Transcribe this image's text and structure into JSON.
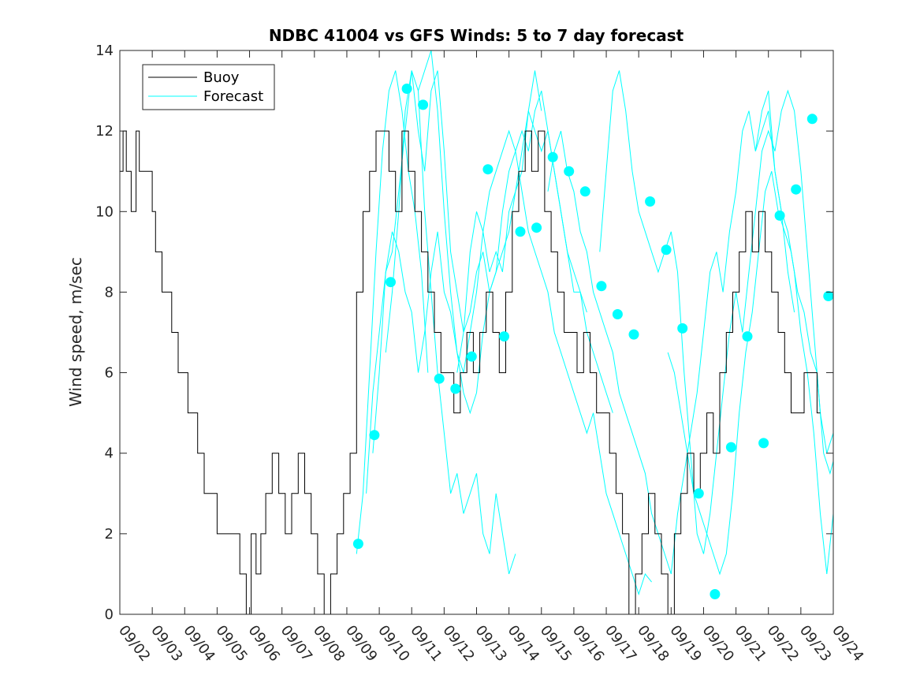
{
  "chart_data": {
    "type": "line",
    "title": "NDBC 41004 vs GFS Winds: 5 to 7 day forecast",
    "xlabel": "",
    "ylabel": "Wind speed, m/sec",
    "xlim": [
      0,
      22
    ],
    "ylim": [
      0,
      14
    ],
    "yticks": [
      0,
      2,
      4,
      6,
      8,
      10,
      12,
      14
    ],
    "x_tick_labels": [
      "09/02",
      "09/03",
      "09/04",
      "09/05",
      "09/06",
      "09/07",
      "09/08",
      "09/09",
      "09/10",
      "09/11",
      "09/12",
      "09/13",
      "09/14",
      "09/15",
      "09/16",
      "09/17",
      "09/18",
      "09/19",
      "09/20",
      "09/21",
      "09/22",
      "09/23",
      "09/24"
    ],
    "grid": false,
    "legend": {
      "position": "top-left",
      "entries": [
        "Buoy",
        "Forecast"
      ]
    },
    "colors": {
      "buoy": "#000000",
      "forecast": "#00ffff"
    },
    "series": [
      {
        "name": "Buoy",
        "x": [
          0.0,
          0.1,
          0.2,
          0.35,
          0.5,
          0.6,
          0.8,
          1.0,
          1.1,
          1.3,
          1.6,
          1.8,
          2.1,
          2.4,
          2.6,
          2.8,
          3.0,
          3.2,
          3.5,
          3.7,
          3.9,
          4.05,
          4.2,
          4.35,
          4.5,
          4.7,
          4.9,
          5.1,
          5.3,
          5.5,
          5.7,
          5.9,
          6.1,
          6.3,
          6.5,
          6.7,
          6.9,
          7.1,
          7.3,
          7.5,
          7.7,
          7.9,
          8.1,
          8.3,
          8.5,
          8.7,
          8.9,
          9.1,
          9.3,
          9.5,
          9.7,
          9.9,
          10.1,
          10.3,
          10.5,
          10.7,
          10.9,
          11.1,
          11.3,
          11.5,
          11.7,
          11.9,
          12.1,
          12.3,
          12.5,
          12.7,
          12.9,
          13.1,
          13.3,
          13.5,
          13.7,
          13.9,
          14.1,
          14.3,
          14.5,
          14.7,
          14.9,
          15.1,
          15.3,
          15.5,
          15.7,
          15.9,
          16.1,
          16.3,
          16.5,
          16.7,
          16.9,
          17.1,
          17.3,
          17.5,
          17.7,
          17.9,
          18.1,
          18.3,
          18.5,
          18.7,
          18.9,
          19.1,
          19.3,
          19.5,
          19.7,
          19.9,
          20.1,
          20.3,
          20.5,
          20.7,
          20.9,
          21.1,
          21.3,
          21.5
        ],
        "y": [
          11,
          12,
          11,
          10,
          12,
          11,
          11,
          10,
          9,
          8,
          7,
          6,
          5,
          4,
          3,
          3,
          2,
          2,
          2,
          1,
          0,
          2,
          1,
          2,
          3,
          4,
          3,
          2,
          3,
          4,
          3,
          2,
          1,
          0,
          1,
          2,
          3,
          4,
          8,
          10,
          11,
          12,
          12,
          11,
          10,
          12,
          11,
          10,
          9,
          8,
          7,
          6,
          6,
          5,
          6,
          7,
          6,
          7,
          8,
          7,
          6,
          8,
          10,
          11,
          12,
          11,
          12,
          10,
          9,
          8,
          7,
          7,
          6,
          7,
          6,
          5,
          5,
          4,
          3,
          2,
          0,
          1,
          2,
          3,
          2,
          1,
          0,
          2,
          3,
          4,
          3,
          4,
          5,
          4,
          6,
          7,
          8,
          9,
          10,
          9,
          10,
          9,
          8,
          7,
          6,
          5,
          5,
          6,
          6,
          5
        ]
      },
      {
        "name": "Forecast",
        "markers": {
          "x": [
            7.35,
            7.85,
            8.35,
            8.85,
            9.35,
            9.85,
            10.35,
            10.85,
            11.35,
            11.85,
            12.35,
            12.85,
            13.35,
            13.85,
            14.35,
            14.85,
            15.35,
            15.85,
            16.35,
            16.85,
            17.35,
            17.85,
            18.35,
            18.85,
            19.35,
            19.85,
            20.35,
            20.85,
            21.35,
            21.85
          ],
          "y": [
            1.75,
            4.45,
            8.25,
            13.05,
            12.65,
            5.85,
            5.6,
            6.4,
            11.05,
            6.9,
            9.5,
            9.6,
            11.35,
            11.0,
            10.5,
            8.15,
            7.45,
            6.95,
            10.25,
            9.05,
            7.1,
            3.0,
            0.5,
            4.15,
            6.9,
            4.25,
            9.9,
            10.55,
            12.3,
            7.9
          ]
        },
        "traces": [
          {
            "x": [
              7.3,
              7.5,
              7.7,
              7.9,
              8.1,
              8.3,
              8.5,
              8.7,
              8.9,
              9.1,
              9.3,
              9.5
            ],
            "y": [
              1.5,
              3.0,
              6.0,
              9.0,
              11.5,
              13.0,
              13.5,
              12.5,
              11.0,
              10.0,
              8.5,
              6.0
            ]
          },
          {
            "x": [
              7.6,
              7.8,
              8.0,
              8.2,
              8.4,
              8.6,
              8.8,
              9.0,
              9.2,
              9.4,
              9.6,
              9.8,
              10.0,
              10.2,
              10.4,
              10.6,
              10.8,
              11.0,
              11.2,
              11.4,
              11.6,
              11.8,
              12.0,
              12.2
            ],
            "y": [
              3.0,
              5.5,
              7.0,
              8.5,
              9.0,
              10.5,
              12.0,
              13.5,
              13.0,
              10.0,
              8.0,
              6.0,
              4.5,
              3.0,
              3.5,
              2.5,
              3.0,
              3.5,
              2.0,
              1.5,
              3.0,
              2.0,
              1.0,
              1.5
            ]
          },
          {
            "x": [
              7.8,
              8.0,
              8.2,
              8.4,
              8.6,
              8.8,
              9.0,
              9.2,
              9.4,
              9.6,
              9.8,
              10.0,
              10.2,
              10.4,
              10.6,
              10.8,
              11.0,
              11.2,
              11.4,
              11.6,
              11.8,
              12.0,
              12.2,
              12.4,
              12.6,
              12.8,
              13.0
            ],
            "y": [
              4.0,
              6.0,
              8.5,
              9.5,
              9.0,
              8.0,
              7.5,
              6.0,
              7.0,
              8.5,
              9.5,
              8.0,
              7.5,
              6.5,
              6.0,
              7.0,
              8.0,
              9.5,
              8.5,
              9.0,
              8.5,
              10.0,
              10.5,
              11.0,
              12.5,
              13.5,
              12.5
            ]
          },
          {
            "x": [
              8.2,
              8.4,
              8.6,
              8.8,
              9.0,
              9.2,
              9.4,
              9.6,
              9.8,
              10.0,
              10.2,
              10.4,
              10.6,
              10.8,
              11.0,
              11.2,
              11.4,
              11.6,
              11.8,
              12.0,
              12.2,
              12.4,
              12.6,
              12.8,
              13.0,
              13.2,
              13.4,
              13.6,
              13.8,
              14.0,
              14.2,
              14.4
            ],
            "y": [
              6.5,
              8.0,
              10.0,
              12.5,
              13.5,
              12.0,
              11.0,
              13.0,
              13.5,
              11.5,
              9.0,
              8.0,
              7.0,
              7.5,
              8.5,
              9.0,
              8.0,
              8.5,
              10.0,
              11.0,
              11.5,
              12.0,
              11.5,
              12.5,
              13.0,
              12.0,
              11.0,
              10.0,
              9.0,
              8.5,
              8.0,
              7.5
            ]
          },
          {
            "x": [
              9.2,
              9.4,
              9.6,
              9.8,
              10.0,
              10.2,
              10.4,
              10.6,
              10.8,
              11.0,
              11.2,
              11.4,
              11.6,
              11.8,
              12.0,
              12.2,
              12.4,
              12.6,
              12.8,
              13.0,
              13.2,
              13.4,
              13.6,
              13.8,
              14.0,
              14.2,
              14.4,
              14.6,
              14.8,
              15.0,
              15.2
            ],
            "y": [
              13.0,
              13.5,
              14.0,
              12.5,
              10.0,
              8.0,
              6.5,
              5.5,
              5.0,
              5.5,
              7.0,
              8.0,
              8.5,
              9.0,
              9.5,
              10.5,
              11.5,
              12.5,
              12.0,
              11.5,
              12.0,
              11.0,
              10.0,
              9.0,
              8.0,
              8.0,
              7.0,
              6.5,
              6.0,
              5.5,
              5.0
            ]
          },
          {
            "x": [
              10.4,
              10.6,
              10.8,
              11.0,
              11.2,
              11.4,
              11.6,
              11.8,
              12.0,
              12.2,
              12.4,
              12.6,
              12.8,
              13.0,
              13.2,
              13.4,
              13.6,
              13.8,
              14.0,
              14.2,
              14.4,
              14.6,
              14.8,
              15.0,
              15.2,
              15.4,
              15.6,
              15.8,
              16.0,
              16.2,
              16.4
            ],
            "y": [
              6.0,
              7.0,
              9.0,
              10.0,
              9.5,
              10.5,
              11.0,
              11.5,
              12.0,
              11.5,
              10.5,
              9.5,
              9.0,
              8.5,
              8.0,
              7.0,
              6.5,
              6.0,
              5.5,
              5.0,
              4.5,
              5.0,
              4.0,
              3.0,
              2.5,
              2.0,
              1.5,
              1.0,
              0.5,
              1.0,
              0.8
            ]
          },
          {
            "x": [
              13.2,
              13.4,
              13.6,
              13.8,
              14.0,
              14.2,
              14.4,
              14.6,
              14.8,
              15.0,
              15.2,
              15.4,
              15.6,
              15.8,
              16.0,
              16.2,
              16.4,
              16.6,
              16.8,
              17.0,
              17.2,
              17.4,
              17.6,
              17.8,
              18.0,
              18.2,
              18.4,
              18.6,
              18.8,
              19.0,
              19.2,
              19.4,
              19.6,
              19.8,
              20.0,
              20.2,
              20.4,
              20.6,
              20.8
            ],
            "y": [
              10.5,
              11.5,
              12.0,
              11.0,
              10.5,
              9.5,
              9.0,
              8.0,
              7.5,
              7.0,
              6.5,
              5.5,
              5.0,
              4.5,
              4.0,
              3.5,
              2.5,
              2.0,
              1.5,
              1.0,
              2.5,
              3.5,
              4.5,
              5.5,
              7.0,
              8.5,
              9.0,
              8.0,
              9.5,
              10.5,
              12.0,
              12.5,
              11.5,
              12.0,
              12.5,
              11.0,
              10.0,
              8.5,
              7.5
            ]
          },
          {
            "x": [
              14.8,
              15.0,
              15.2,
              15.4,
              15.6,
              15.8,
              16.0,
              16.2,
              16.4,
              16.6,
              16.8,
              17.0,
              17.2,
              17.4,
              17.6,
              17.8,
              18.0,
              18.2,
              18.4,
              18.6,
              18.8,
              19.0,
              19.2,
              19.4,
              19.6,
              19.8,
              20.0,
              20.2,
              20.4,
              20.6,
              20.8,
              21.0,
              21.2,
              21.4,
              21.6,
              21.8,
              22.0
            ],
            "y": [
              9.0,
              11.0,
              13.0,
              13.5,
              12.5,
              11.0,
              10.0,
              9.5,
              9.0,
              8.5,
              9.0,
              9.5,
              8.5,
              6.0,
              4.0,
              2.0,
              1.5,
              2.5,
              4.0,
              5.5,
              7.0,
              8.0,
              7.0,
              8.5,
              10.0,
              11.5,
              12.0,
              11.5,
              12.5,
              13.0,
              12.5,
              11.0,
              9.0,
              7.0,
              5.0,
              4.0,
              4.5
            ]
          },
          {
            "x": [
              16.9,
              17.1,
              17.3,
              17.5,
              17.7,
              17.9,
              18.1,
              18.3,
              18.5,
              18.7,
              18.9,
              19.1,
              19.3,
              19.5,
              19.7,
              19.9,
              20.1,
              20.3,
              20.5,
              20.7,
              20.9,
              21.1,
              21.3,
              21.5,
              21.7,
              21.9,
              22.0
            ],
            "y": [
              6.5,
              6.0,
              5.0,
              4.0,
              3.0,
              2.5,
              2.0,
              1.5,
              1.0,
              1.5,
              3.0,
              5.0,
              6.5,
              7.5,
              9.0,
              10.5,
              11.0,
              10.0,
              9.5,
              9.0,
              8.0,
              7.5,
              6.5,
              6.0,
              4.0,
              3.5,
              3.8
            ]
          },
          {
            "x": [
              19.6,
              19.8,
              20.0,
              20.2,
              20.4,
              20.6,
              20.8,
              21.0,
              21.2,
              21.4,
              21.6,
              21.8,
              22.0
            ],
            "y": [
              11.5,
              12.5,
              13.0,
              11.0,
              10.0,
              9.5,
              8.5,
              7.0,
              6.0,
              4.5,
              2.5,
              1.0,
              2.5
            ]
          }
        ]
      }
    ]
  }
}
